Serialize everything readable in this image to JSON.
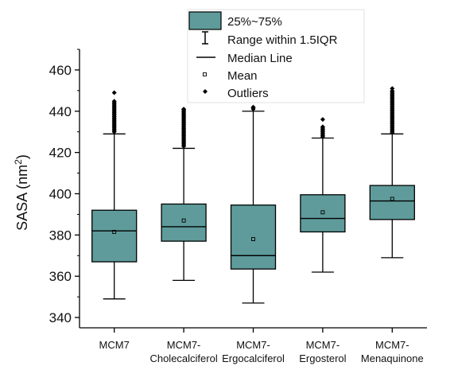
{
  "chart_data": {
    "type": "box",
    "ylabel": "SASA (nm",
    "ylabel_sup": "2",
    "ylabel_close": ")",
    "ylim": [
      335,
      470
    ],
    "yticks": [
      "340",
      "360",
      "380",
      "400",
      "420",
      "440",
      "460"
    ],
    "ytick_values": [
      340,
      360,
      380,
      400,
      420,
      440,
      460
    ],
    "box_color": "#5f9b9b",
    "categories": [
      {
        "line1": "MCM7",
        "line2": ""
      },
      {
        "line1": "MCM7-",
        "line2": "Cholecalciferol"
      },
      {
        "line1": "MCM7-",
        "line2": "Ergocalciferol"
      },
      {
        "line1": "MCM7-",
        "line2": "Ergosterol"
      },
      {
        "line1": "MCM7-",
        "line2": "Menaquinone"
      }
    ],
    "boxes": [
      {
        "whisker_low": 349,
        "q1": 367,
        "median": 382,
        "q3": 392,
        "whisker_high": 429,
        "mean": 381.5,
        "outliers_from": 430,
        "outliers_to": 445,
        "outlier_max": 449
      },
      {
        "whisker_low": 358,
        "q1": 377,
        "median": 384,
        "q3": 395,
        "whisker_high": 422,
        "mean": 387,
        "outliers_from": 423,
        "outliers_to": 441,
        "outlier_max": 441
      },
      {
        "whisker_low": 347,
        "q1": 363.5,
        "median": 370,
        "q3": 394.5,
        "whisker_high": 440,
        "mean": 378,
        "outliers_from": 441,
        "outliers_to": 442,
        "outlier_max": 442
      },
      {
        "whisker_low": 362,
        "q1": 381.5,
        "median": 388,
        "q3": 399.5,
        "whisker_high": 427,
        "mean": 391,
        "outliers_from": 427.5,
        "outliers_to": 433,
        "outlier_max": 436
      },
      {
        "whisker_low": 369,
        "q1": 387.5,
        "median": 396.5,
        "q3": 404,
        "whisker_high": 429,
        "mean": 397.5,
        "outliers_from": 429.5,
        "outliers_to": 450,
        "outlier_max": 451
      }
    ],
    "legend": {
      "box": "25%~75%",
      "range": "Range within 1.5IQR",
      "median": "Median Line",
      "mean": "Mean",
      "outliers": "Outliers"
    }
  }
}
